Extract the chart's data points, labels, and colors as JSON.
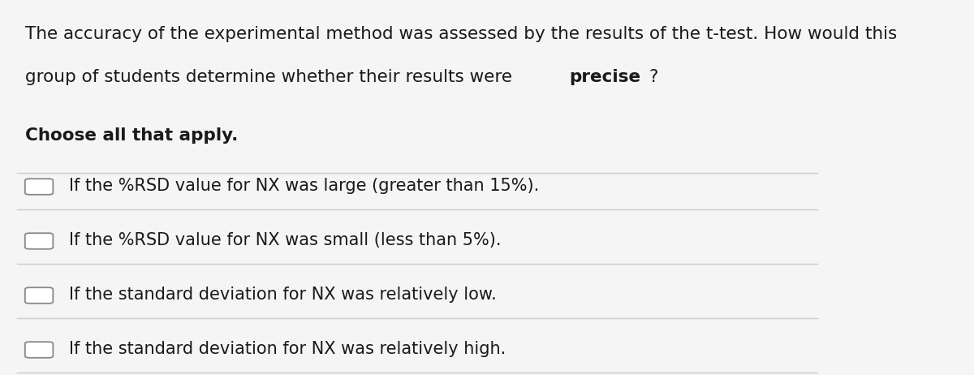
{
  "background_color": "#f5f5f5",
  "question_line1": "The accuracy of the experimental method was assessed by the results of the t-test. How would this",
  "question_line2_normal": "group of students determine whether their results were ",
  "question_line2_bold": "precise",
  "question_line2_end": "?",
  "choose_text": "Choose all that apply.",
  "options": [
    "If the %RSD value for NX was large (greater than 15%).",
    "If the %RSD value for NX was small (less than 5%).",
    "If the standard deviation for NX was relatively low.",
    "If the standard deviation for NX was relatively high."
  ],
  "text_color": "#1a1a1a",
  "line_color": "#cccccc",
  "checkbox_color": "#888888",
  "font_size_question": 15.5,
  "font_size_choose": 15.5,
  "font_size_options": 15.0
}
